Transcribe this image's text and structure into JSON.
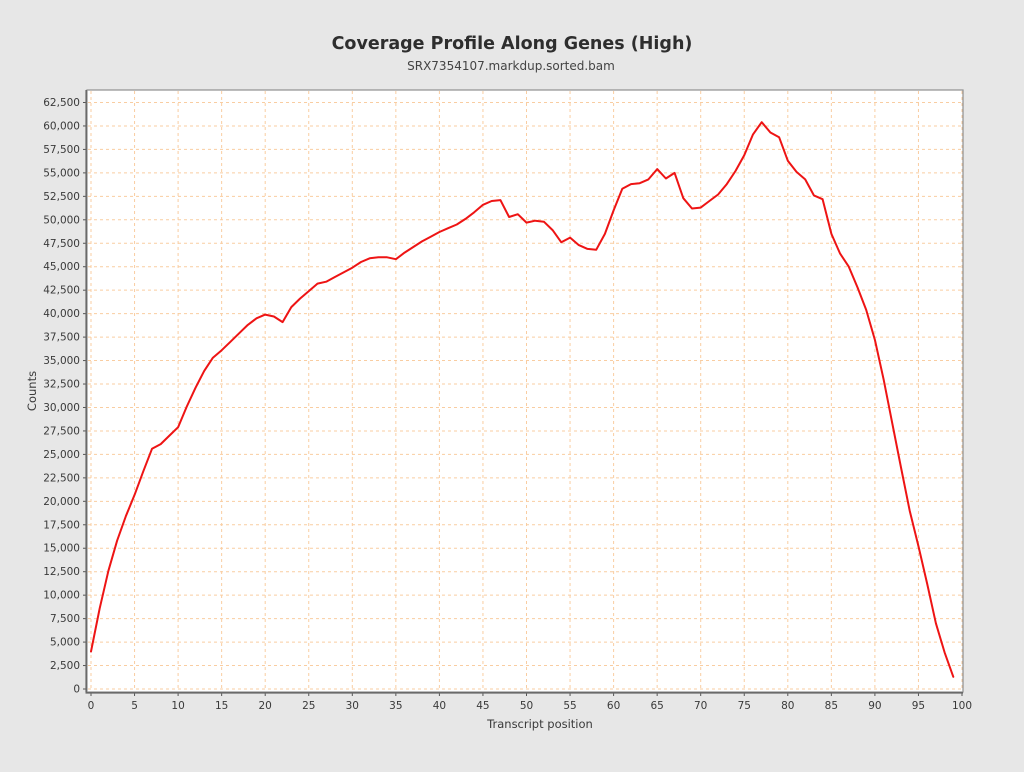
{
  "colors": {
    "background": "#e7e7e7",
    "plot_background": "#ffffff",
    "grid": "#f9cda1",
    "axis": "#8f8f8f",
    "axis_dark": "#6a6a6a",
    "tick": "#555555",
    "line": "#ee1414"
  },
  "chart_data": {
    "type": "line",
    "title": "Coverage Profile Along Genes (High)",
    "subtitle": "SRX7354107.markdup.sorted.bam",
    "xlabel": "Transcript position",
    "ylabel": "Counts",
    "xlim": [
      0,
      100
    ],
    "ylim": [
      0,
      62500
    ],
    "x_tick_step": 5,
    "y_tick_step": 2500,
    "grid": "on",
    "legend": "none",
    "series": [
      {
        "name": "coverage",
        "color": "#ee1414",
        "x_start": 0,
        "values": [
          4000,
          8600,
          12600,
          15800,
          18400,
          20700,
          23200,
          25600,
          26100,
          27000,
          27900,
          30100,
          32100,
          33900,
          35300,
          36100,
          37000,
          37900,
          38800,
          39500,
          39900,
          39700,
          39100,
          40700,
          41600,
          42400,
          43200,
          43400,
          43900,
          44400,
          44900,
          45500,
          45900,
          46000,
          46000,
          45800,
          46500,
          47100,
          47700,
          48200,
          48700,
          49100,
          49500,
          50100,
          50800,
          51600,
          52000,
          52100,
          50300,
          50600,
          49700,
          49900,
          49800,
          48900,
          47600,
          48100,
          47300,
          46900,
          46800,
          48500,
          51000,
          53300,
          53800,
          53900,
          54300,
          55400,
          54400,
          55000,
          52300,
          51200,
          51300,
          52000,
          52700,
          53800,
          55200,
          56900,
          59100,
          60400,
          59300,
          58800,
          56300,
          55100,
          54300,
          52600,
          52200,
          48500,
          46400,
          45000,
          42800,
          40400,
          37200,
          33000,
          28300,
          23600,
          19000,
          15200,
          11200,
          7000,
          3900,
          1300
        ]
      }
    ]
  }
}
